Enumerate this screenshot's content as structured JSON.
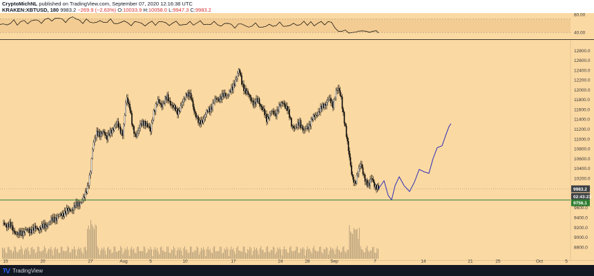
{
  "header": {
    "author": "CryptoMichNL",
    "published_text": "published on TradingView.com, September 07, 2020 12:16:38 UTC",
    "symbol": "KRAKEN:XBTUSD, 180",
    "last": "9983.2",
    "change": "−269.9 (−2.63%)",
    "o_label": "O:",
    "o_value": "10033.9",
    "h_label": "H:",
    "h_value": "10058.0",
    "l_label": "L:",
    "l_value": "9947.3",
    "c_label": "C:",
    "c_value": "9983.2"
  },
  "footer": {
    "brand": "TradingView",
    "logo_icon": "tradingview-logo-icon"
  },
  "colors": {
    "background": "#fbd9a3",
    "candles": "#000000",
    "projection": "#3b3bb3",
    "support_line": "#2e7d32",
    "last_price_tag": "#3c4043"
  },
  "chart_data": [
    {
      "type": "line",
      "title": "",
      "ylim": [
        25,
        80
      ],
      "yticks": [
        "80.00",
        "40.00"
      ],
      "band": [
        40,
        70
      ],
      "grid": false,
      "series": [
        {
          "x": [
            0,
            5,
            10,
            15,
            20,
            25,
            30,
            35,
            40,
            45,
            50,
            55,
            60,
            65,
            70,
            75,
            80,
            85,
            90,
            95,
            100,
            105,
            110,
            115,
            120,
            125,
            130,
            135,
            140,
            145,
            150,
            155,
            160,
            165,
            170,
            175,
            180,
            185,
            190,
            195,
            200,
            205,
            210,
            215,
            220,
            225,
            230,
            235,
            240,
            245,
            250,
            255,
            260,
            265,
            270,
            275,
            280,
            285,
            290,
            295,
            300,
            305,
            310,
            315,
            320,
            325,
            330,
            335,
            340,
            345,
            350,
            355,
            360,
            365,
            370,
            375,
            380,
            385,
            390,
            395,
            400,
            405,
            410,
            415,
            420,
            425,
            430,
            435,
            440,
            445,
            450,
            455,
            460,
            465,
            470,
            475,
            480,
            485,
            490,
            495,
            500,
            505,
            510,
            515,
            520,
            525,
            530,
            535,
            540,
            545,
            548
          ],
          "values": [
            58,
            60,
            55,
            62,
            66,
            58,
            63,
            67,
            60,
            64,
            70,
            65,
            62,
            68,
            72,
            66,
            70,
            74,
            68,
            64,
            70,
            75,
            71,
            66,
            62,
            68,
            65,
            60,
            63,
            67,
            61,
            64,
            68,
            62,
            58,
            63,
            66,
            60,
            57,
            62,
            65,
            59,
            55,
            61,
            64,
            58,
            62,
            66,
            60,
            56,
            61,
            64,
            58,
            55,
            60,
            63,
            57,
            61,
            65,
            59,
            56,
            60,
            63,
            58,
            54,
            59,
            62,
            56,
            52,
            57,
            60,
            55,
            51,
            56,
            59,
            54,
            50,
            55,
            58,
            53,
            57,
            61,
            56,
            52,
            57,
            60,
            55,
            59,
            63,
            58,
            62,
            56,
            60,
            64,
            58,
            62,
            65,
            48,
            44,
            42,
            45,
            40,
            38,
            43,
            41,
            45,
            42,
            40,
            44,
            42,
            41
          ]
        }
      ]
    },
    {
      "type": "candlestick",
      "title": "",
      "xlabel": "",
      "ylabel": "",
      "ylim": [
        8700,
        13000
      ],
      "yticks": [
        8800,
        9000,
        9200,
        9400,
        9600,
        9800,
        10000,
        10200,
        10400,
        10600,
        10800,
        11000,
        11200,
        11400,
        11600,
        11800,
        12000,
        12200,
        12400,
        12600,
        12800
      ],
      "xticks": [
        {
          "label": "15",
          "x": 8
        },
        {
          "label": "20",
          "x": 62
        },
        {
          "label": "27",
          "x": 131
        },
        {
          "label": "Aug",
          "x": 179
        },
        {
          "label": "5",
          "x": 218
        },
        {
          "label": "10",
          "x": 268
        },
        {
          "label": "17",
          "x": 338
        },
        {
          "label": "24",
          "x": 406
        },
        {
          "label": "28",
          "x": 445
        },
        {
          "label": "Sep",
          "x": 484
        },
        {
          "label": "7",
          "x": 543
        },
        {
          "label": "14",
          "x": 613
        },
        {
          "label": "21",
          "x": 681
        },
        {
          "label": "25",
          "x": 721
        },
        {
          "label": "Oct",
          "x": 781
        },
        {
          "label": "5",
          "x": 820
        }
      ],
      "price_path": [
        [
          5,
          9280
        ],
        [
          15,
          9230
        ],
        [
          25,
          9050
        ],
        [
          35,
          9120
        ],
        [
          45,
          9150
        ],
        [
          55,
          9180
        ],
        [
          65,
          9220
        ],
        [
          75,
          9350
        ],
        [
          85,
          9420
        ],
        [
          95,
          9520
        ],
        [
          105,
          9580
        ],
        [
          115,
          9700
        ],
        [
          122,
          9800
        ],
        [
          127,
          10050
        ],
        [
          131,
          10350
        ],
        [
          135,
          10900
        ],
        [
          140,
          11150
        ],
        [
          145,
          11050
        ],
        [
          150,
          11180
        ],
        [
          155,
          11000
        ],
        [
          162,
          11200
        ],
        [
          170,
          11300
        ],
        [
          178,
          11100
        ],
        [
          183,
          11850
        ],
        [
          188,
          11650
        ],
        [
          192,
          11200
        ],
        [
          196,
          11050
        ],
        [
          202,
          11250
        ],
        [
          210,
          11350
        ],
        [
          218,
          11150
        ],
        [
          222,
          11550
        ],
        [
          228,
          11750
        ],
        [
          235,
          11700
        ],
        [
          242,
          11850
        ],
        [
          250,
          11650
        ],
        [
          258,
          11550
        ],
        [
          264,
          11700
        ],
        [
          270,
          11950
        ],
        [
          276,
          11850
        ],
        [
          282,
          11550
        ],
        [
          288,
          11300
        ],
        [
          294,
          11400
        ],
        [
          300,
          11550
        ],
        [
          306,
          11650
        ],
        [
          312,
          11800
        ],
        [
          320,
          11850
        ],
        [
          328,
          11900
        ],
        [
          336,
          12000
        ],
        [
          342,
          12250
        ],
        [
          346,
          12400
        ],
        [
          350,
          12150
        ],
        [
          356,
          11950
        ],
        [
          362,
          11850
        ],
        [
          368,
          11700
        ],
        [
          374,
          11800
        ],
        [
          380,
          11600
        ],
        [
          386,
          11400
        ],
        [
          392,
          11550
        ],
        [
          398,
          11500
        ],
        [
          404,
          11650
        ],
        [
          410,
          11750
        ],
        [
          416,
          11600
        ],
        [
          422,
          11300
        ],
        [
          428,
          11200
        ],
        [
          434,
          11350
        ],
        [
          440,
          11150
        ],
        [
          446,
          11250
        ],
        [
          452,
          11400
        ],
        [
          458,
          11500
        ],
        [
          464,
          11600
        ],
        [
          470,
          11700
        ],
        [
          476,
          11800
        ],
        [
          482,
          11700
        ],
        [
          486,
          11950
        ],
        [
          490,
          12000
        ],
        [
          494,
          11850
        ],
        [
          498,
          11400
        ],
        [
          502,
          11000
        ],
        [
          506,
          10650
        ],
        [
          510,
          10200
        ],
        [
          514,
          10050
        ],
        [
          518,
          10350
        ],
        [
          522,
          10500
        ],
        [
          526,
          10250
        ],
        [
          530,
          10150
        ],
        [
          534,
          10050
        ],
        [
          538,
          10200
        ],
        [
          542,
          10080
        ],
        [
          546,
          10000
        ],
        [
          548,
          9983
        ]
      ],
      "projection": [
        [
          548,
          9983
        ],
        [
          556,
          10150
        ],
        [
          562,
          9850
        ],
        [
          567,
          9760
        ],
        [
          572,
          10050
        ],
        [
          578,
          10230
        ],
        [
          585,
          10050
        ],
        [
          593,
          9930
        ],
        [
          600,
          10120
        ],
        [
          607,
          10380
        ],
        [
          614,
          10330
        ],
        [
          621,
          10300
        ],
        [
          627,
          10600
        ],
        [
          633,
          10820
        ],
        [
          640,
          10860
        ],
        [
          646,
          11100
        ],
        [
          650,
          11250
        ],
        [
          653,
          11310
        ]
      ],
      "support_price": 9756.1,
      "support_label": "9756.1",
      "last_price": 9983.2,
      "last_price_label": "9983.2",
      "countdown_label": "02:43:23"
    }
  ]
}
